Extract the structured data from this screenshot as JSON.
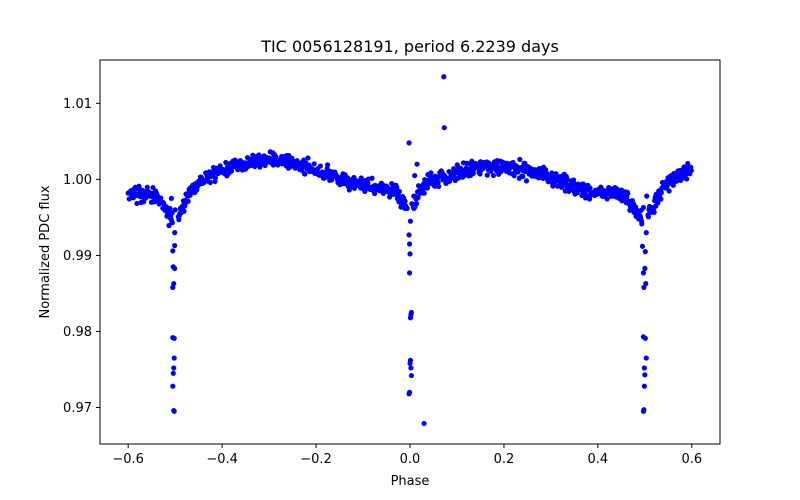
{
  "chart_data": {
    "type": "scatter",
    "title": "TIC 0056128191, period 6.2239 days",
    "xlabel": "Phase",
    "ylabel": "Normalized PDC flux",
    "xlim": [
      -0.66,
      0.66
    ],
    "ylim": [
      0.9652,
      1.0157
    ],
    "x_ticks": [
      -0.6,
      -0.4,
      -0.2,
      0.0,
      0.2,
      0.4,
      0.6
    ],
    "x_tick_labels": [
      "−0.6",
      "−0.4",
      "−0.2",
      "0.0",
      "0.2",
      "0.4",
      "0.6"
    ],
    "y_ticks": [
      0.97,
      0.98,
      0.99,
      1.0,
      1.01
    ],
    "y_tick_labels": [
      "0.97",
      "0.98",
      "0.99",
      "1.00",
      "1.01"
    ],
    "grid": false,
    "marker_color": "#0000ff",
    "period_days": 6.2239,
    "eclipse_phases": [
      -0.5,
      0.0,
      0.5
    ],
    "transit_depth_points": [
      [
        -0.503,
        0.9696
      ],
      [
        -0.502,
        0.9695
      ],
      [
        -0.505,
        0.9728
      ],
      [
        -0.504,
        0.9745
      ],
      [
        -0.503,
        0.9752
      ],
      [
        -0.502,
        0.9765
      ],
      [
        -0.505,
        0.9792
      ],
      [
        -0.502,
        0.9791
      ],
      [
        -0.505,
        0.9858
      ],
      [
        -0.503,
        0.9863
      ],
      [
        -0.504,
        0.9885
      ],
      [
        -0.501,
        0.9883
      ],
      [
        -0.505,
        0.9906
      ],
      [
        -0.501,
        0.9913
      ],
      [
        -0.501,
        0.993
      ],
      [
        -0.506,
        0.9943
      ],
      [
        -0.5,
        0.996
      ],
      [
        -0.508,
        0.9975
      ],
      [
        -0.002,
        0.9718
      ],
      [
        -0.001,
        0.972
      ],
      [
        0.003,
        0.9742
      ],
      [
        0.002,
        0.9752
      ],
      [
        0.001,
        0.9762
      ],
      [
        0.0,
        0.9758
      ],
      [
        0.001,
        0.9818
      ],
      [
        0.002,
        0.9822
      ],
      [
        0.003,
        0.9825
      ],
      [
        -0.001,
        0.9877
      ],
      [
        0.0,
        0.9902
      ],
      [
        -0.001,
        0.9915
      ],
      [
        -0.002,
        0.9927
      ],
      [
        0.001,
        0.9945
      ],
      [
        0.004,
        0.9968
      ],
      [
        0.008,
        0.9978
      ],
      [
        0.03,
        0.9679
      ],
      [
        0.497,
        0.9695
      ],
      [
        0.498,
        0.9697
      ],
      [
        0.499,
        0.9728
      ],
      [
        0.5,
        0.9743
      ],
      [
        0.499,
        0.9752
      ],
      [
        0.503,
        0.9765
      ],
      [
        0.497,
        0.9793
      ],
      [
        0.501,
        0.9791
      ],
      [
        0.498,
        0.9858
      ],
      [
        0.502,
        0.9863
      ],
      [
        0.5,
        0.9883
      ],
      [
        0.497,
        0.9877
      ],
      [
        0.501,
        0.9905
      ],
      [
        0.495,
        0.9912
      ],
      [
        0.503,
        0.993
      ],
      [
        0.493,
        0.9945
      ],
      [
        0.497,
        0.9963
      ],
      [
        0.504,
        0.9978
      ],
      [
        0.072,
        1.0135
      ],
      [
        0.073,
        1.0068
      ],
      [
        -0.002,
        1.0048
      ],
      [
        0.015,
        1.002
      ],
      [
        0.01,
        1.0005
      ]
    ],
    "baseline_model": {
      "x_start": -0.6,
      "x_end": 0.6,
      "step": 0.0011,
      "mean_flux": 1.0003,
      "amplitude_primary": 0.0018,
      "amplitude_secondary": 0.0011,
      "scatter": 0.0009
    }
  }
}
